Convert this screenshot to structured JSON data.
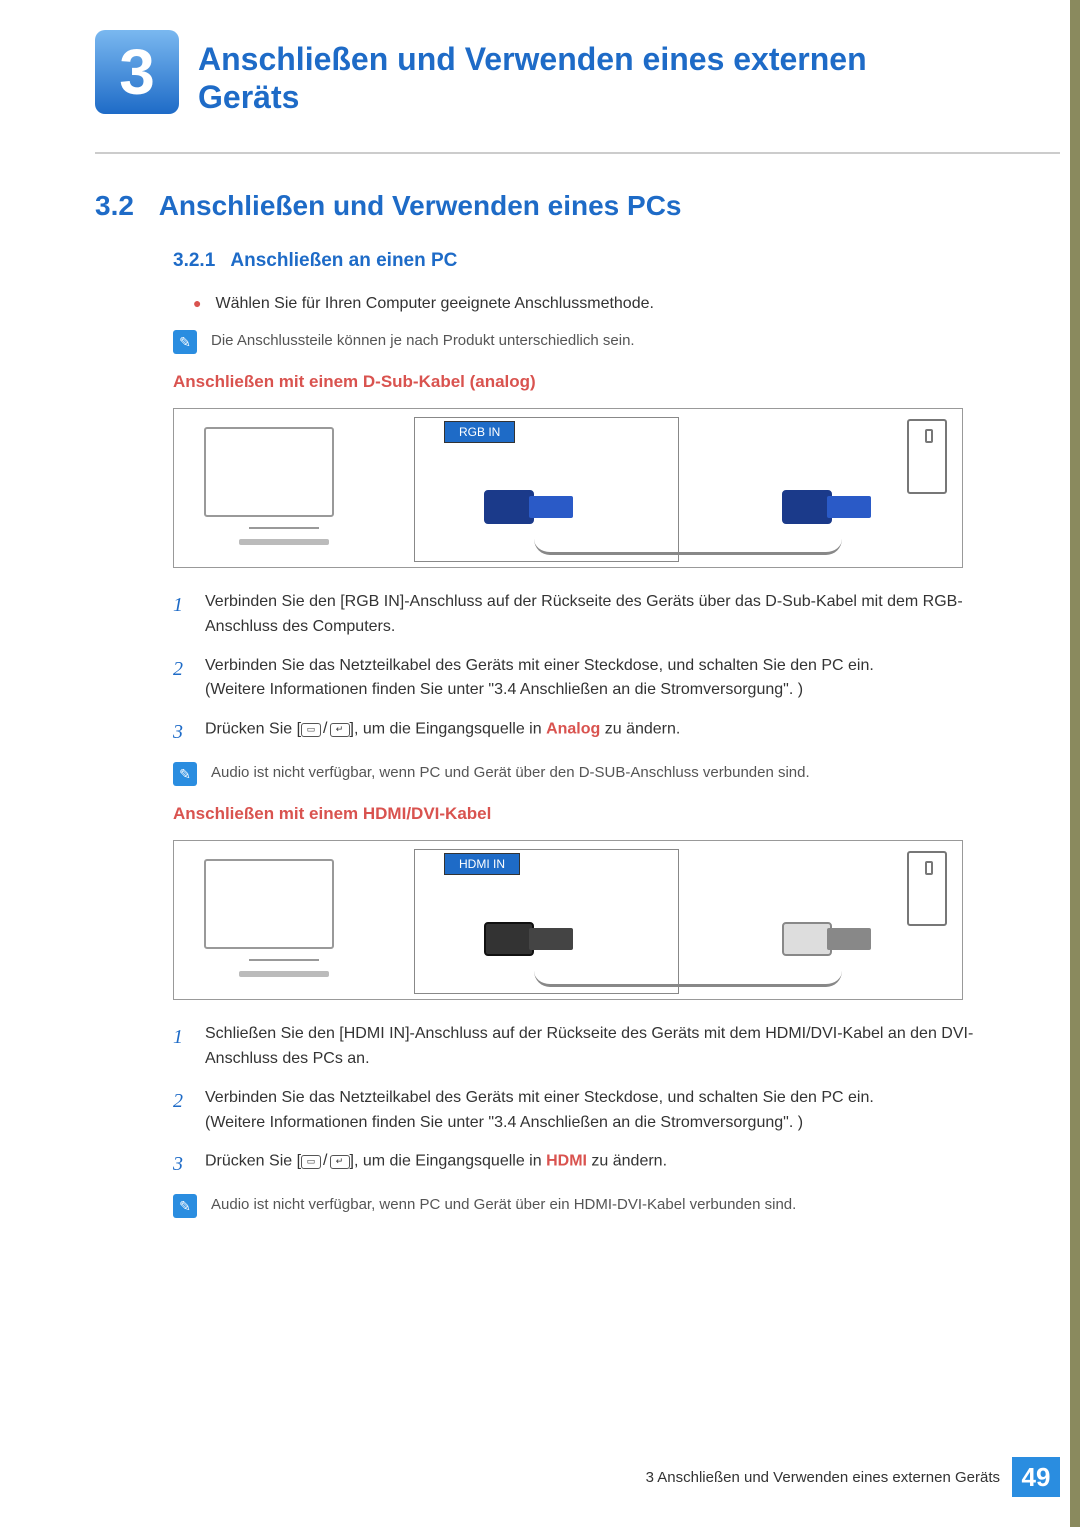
{
  "chapter": {
    "number": "3",
    "title": "Anschließen und Verwenden eines externen Geräts"
  },
  "section": {
    "number": "3.2",
    "title": "Anschließen und Verwenden eines PCs"
  },
  "subsection": {
    "number": "3.2.1",
    "title": "Anschließen an einen PC"
  },
  "intro_bullet": "Wählen Sie für Ihren Computer geeignete Anschlussmethode.",
  "intro_note": "Die Anschlussteile können je nach Produkt unterschiedlich sein.",
  "dsub": {
    "heading": "Anschließen mit einem D-Sub-Kabel (analog)",
    "port_label": "RGB IN",
    "steps": [
      "Verbinden Sie den [RGB IN]-Anschluss auf der Rückseite des Geräts über das D-Sub-Kabel mit dem RGB-Anschluss des Computers.",
      "Verbinden Sie das Netzteilkabel des Geräts mit einer Steckdose, und schalten Sie den PC ein.",
      "(Weitere Informationen finden Sie unter \"3.4 Anschließen an die Stromversorgung\". )"
    ],
    "step3_prefix": "Drücken Sie [",
    "step3_suffix": "], um die Eingangsquelle in ",
    "step3_keyword": "Analog",
    "step3_end": " zu ändern.",
    "note": "Audio ist nicht verfügbar, wenn PC und Gerät über den D-SUB-Anschluss verbunden sind."
  },
  "hdmi": {
    "heading": "Anschließen mit einem HDMI/DVI-Kabel",
    "port_label": "HDMI IN",
    "steps": [
      "Schließen Sie den [HDMI IN]-Anschluss auf der Rückseite des Geräts mit dem HDMI/DVI-Kabel an den DVI-Anschluss des PCs an.",
      "Verbinden Sie das Netzteilkabel des Geräts mit einer Steckdose, und schalten Sie den PC ein.",
      "(Weitere Informationen finden Sie unter \"3.4 Anschließen an die Stromversorgung\". )"
    ],
    "step3_prefix": "Drücken Sie [",
    "step3_suffix": "], um die Eingangsquelle in ",
    "step3_keyword": "HDMI",
    "step3_end": " zu ändern.",
    "note": "Audio ist nicht verfügbar, wenn PC und Gerät über ein HDMI-DVI-Kabel verbunden sind."
  },
  "footer": {
    "text": "3 Anschließen und Verwenden eines externen Geräts",
    "page": "49"
  },
  "colors": {
    "accent_blue": "#1e6bc7",
    "accent_red": "#d9534f",
    "side_stripe": "#8a8a5e",
    "footer_box": "#2a8de0"
  }
}
